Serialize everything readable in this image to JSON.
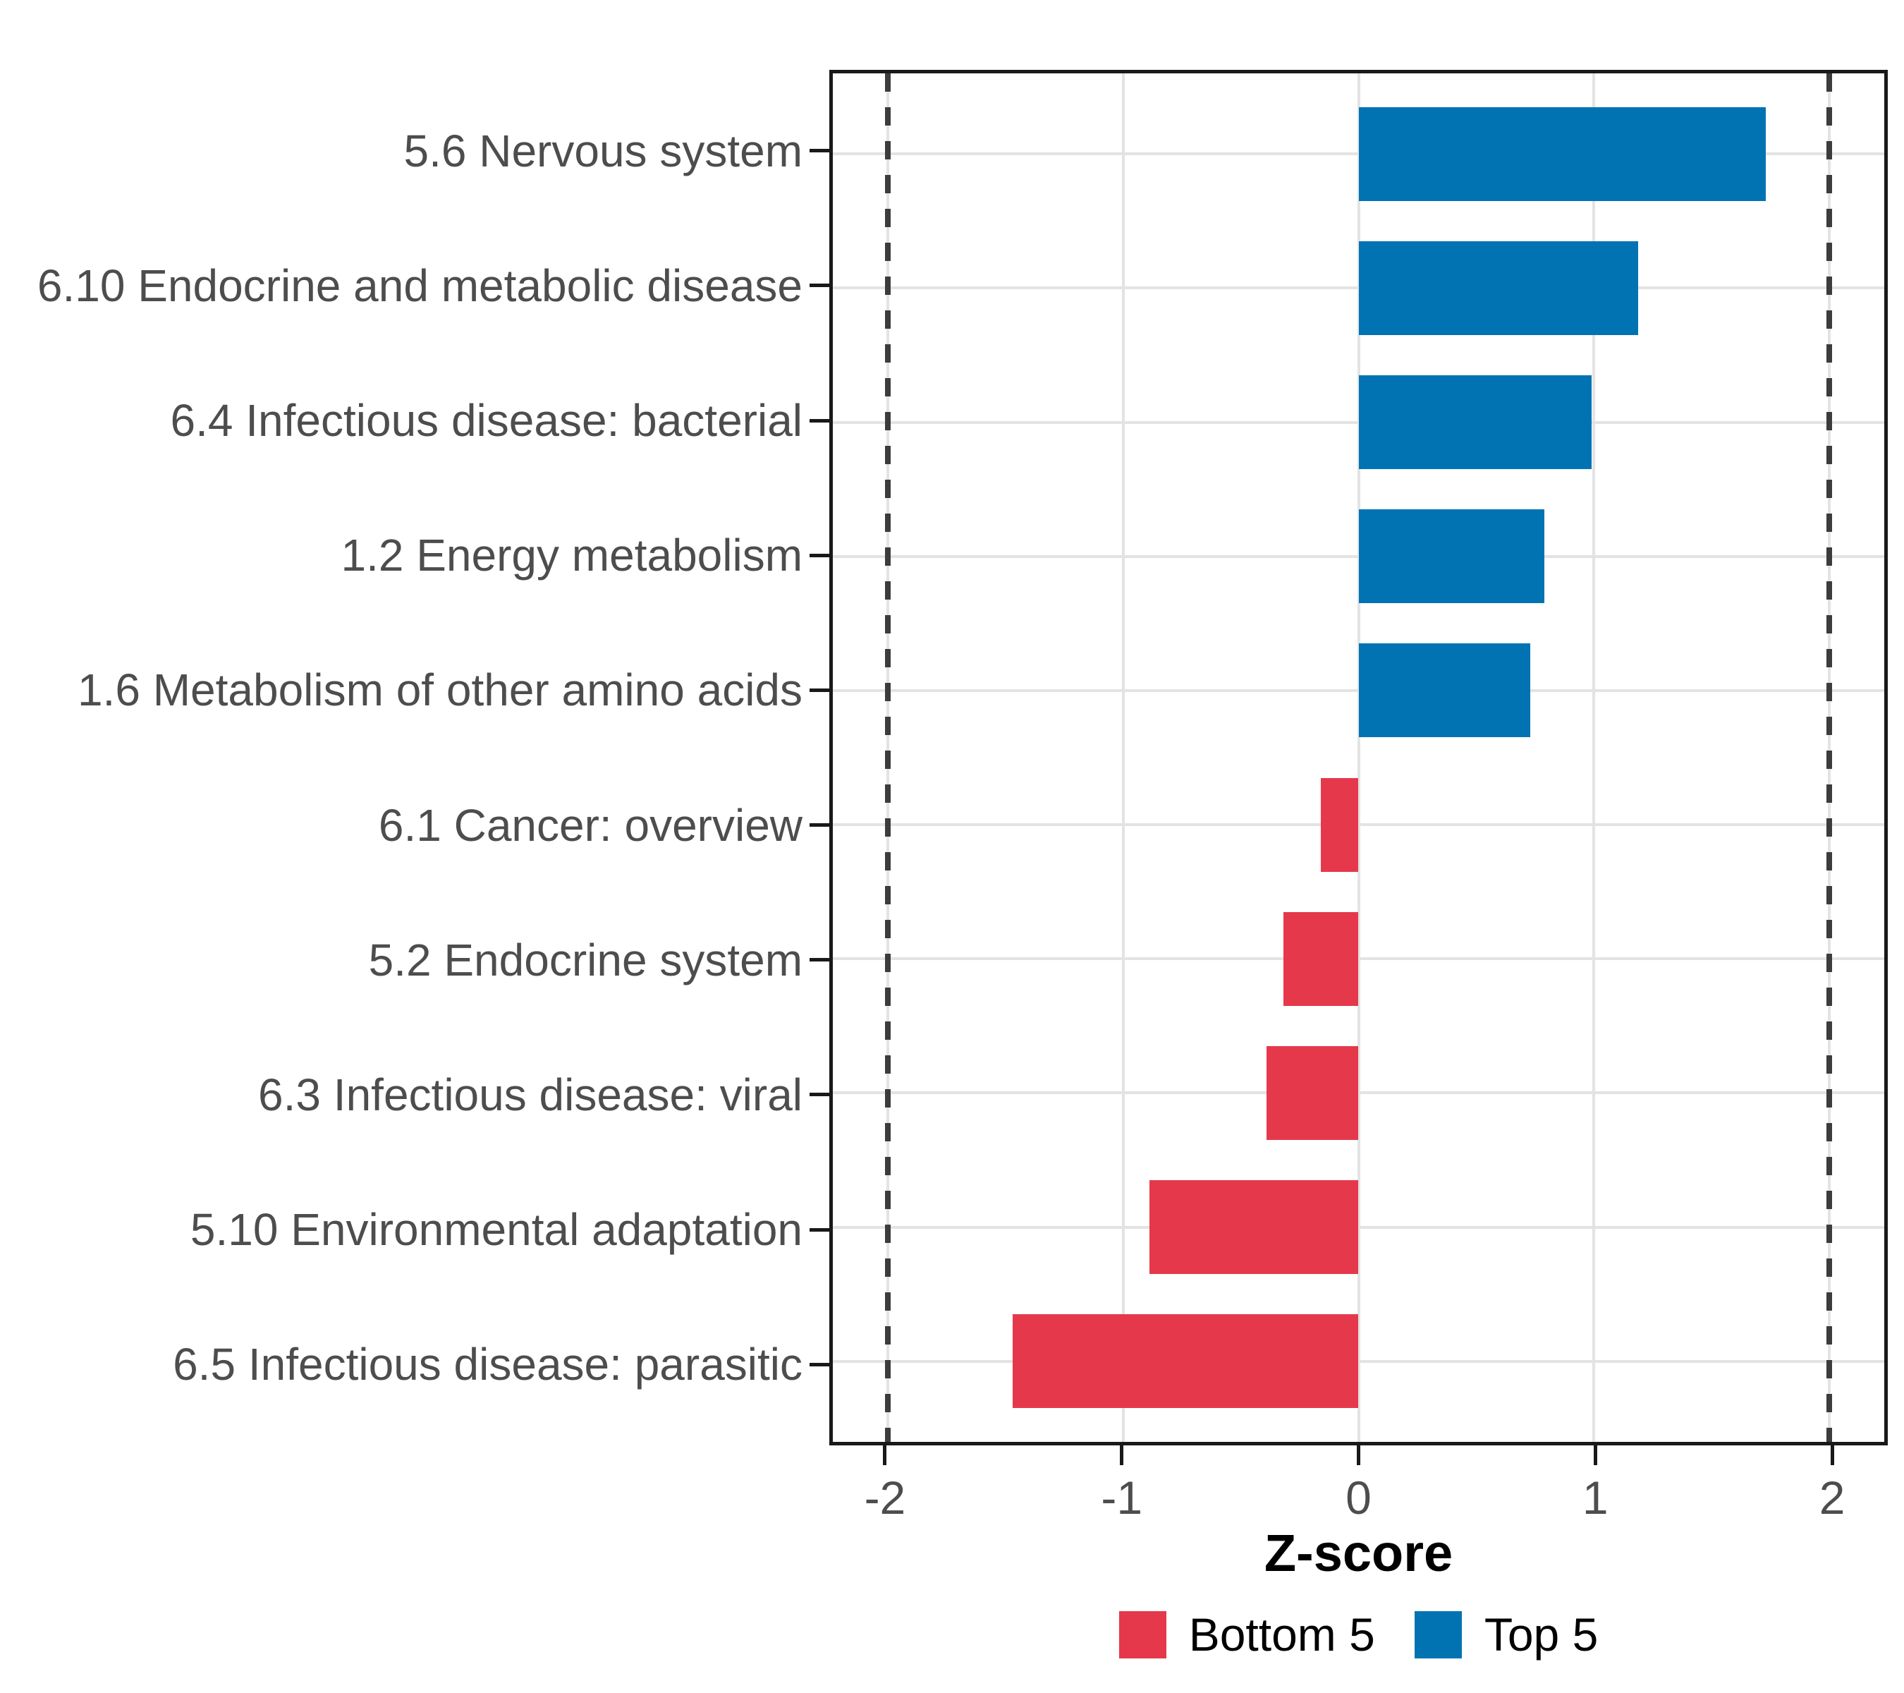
{
  "chart_data": {
    "type": "bar",
    "orientation": "horizontal",
    "title": "",
    "xlabel": "Z-score",
    "ylabel": "",
    "categories": [
      "5.6 Nervous system",
      "6.10 Endocrine and metabolic disease",
      "6.4 Infectious disease: bacterial",
      "1.2 Energy metabolism",
      "1.6 Metabolism of other amino acids",
      "6.1 Cancer: overview",
      "5.2 Endocrine system",
      "6.3 Infectious disease: viral",
      "5.10 Environmental adaptation",
      "6.5 Infectious disease: parasitic"
    ],
    "values": [
      1.73,
      1.19,
      0.99,
      0.79,
      0.73,
      -0.16,
      -0.32,
      -0.39,
      -0.89,
      -1.47
    ],
    "items": [
      {
        "label": "5.6 Nervous system",
        "value": 1.73,
        "group": "Top 5"
      },
      {
        "label": "6.10 Endocrine and metabolic disease",
        "value": 1.19,
        "group": "Top 5"
      },
      {
        "label": "6.4 Infectious disease: bacterial",
        "value": 0.99,
        "group": "Top 5"
      },
      {
        "label": "1.2 Energy metabolism",
        "value": 0.79,
        "group": "Top 5"
      },
      {
        "label": "1.6 Metabolism of other amino acids",
        "value": 0.73,
        "group": "Top 5"
      },
      {
        "label": "6.1 Cancer: overview",
        "value": -0.16,
        "group": "Bottom 5"
      },
      {
        "label": "5.2 Endocrine system",
        "value": -0.32,
        "group": "Bottom 5"
      },
      {
        "label": "6.3 Infectious disease: viral",
        "value": -0.39,
        "group": "Bottom 5"
      },
      {
        "label": "5.10 Environmental adaptation",
        "value": -0.89,
        "group": "Bottom 5"
      },
      {
        "label": "6.5 Infectious disease: parasitic",
        "value": -1.47,
        "group": "Bottom 5"
      }
    ],
    "x_ticks": [
      {
        "value": -2,
        "label": "-2"
      },
      {
        "value": -1,
        "label": "-1"
      },
      {
        "value": 0,
        "label": "0"
      },
      {
        "value": 1,
        "label": "1"
      },
      {
        "value": 2,
        "label": "2"
      }
    ],
    "xlim": [
      -2.235,
      2.235
    ],
    "ref_lines": [
      -2,
      2
    ],
    "grid": "major-only",
    "bar_width": 0.7,
    "y_expand": 0.6,
    "colors": {
      "Bottom 5": "#e5394b",
      "Top 5": "#0173b3",
      "grid": "#e3e3e3",
      "panel_border": "#191919",
      "ref_line": "#3c3c3c",
      "axis_text": "#4d4d4d",
      "title_text": "#000000"
    },
    "legend": {
      "position": "bottom",
      "entries": [
        {
          "label": "Bottom 5",
          "color": "#e5394b"
        },
        {
          "label": "Top 5",
          "color": "#0173b3"
        }
      ]
    }
  }
}
